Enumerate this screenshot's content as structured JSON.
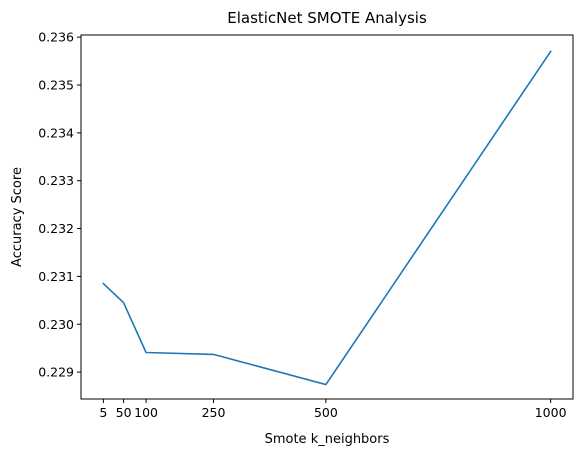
{
  "chart_data": {
    "type": "line",
    "title": "ElasticNet SMOTE Analysis",
    "xlabel": "Smote k_neighbors",
    "ylabel": "Accuracy Score",
    "x": [
      5,
      50,
      100,
      250,
      500,
      1000
    ],
    "series": [
      {
        "values": [
          0.23085,
          0.23045,
          0.22941,
          0.22937,
          0.22874,
          0.2357
        ],
        "color": "#1f77b4"
      }
    ],
    "xticks": [
      5,
      50,
      100,
      250,
      500,
      1000
    ],
    "xtick_labels": [
      "5",
      "50",
      "100",
      "250",
      "500",
      "1000"
    ],
    "yticks": [
      0.229,
      0.23,
      0.231,
      0.232,
      0.233,
      0.234,
      0.235,
      0.236
    ],
    "ytick_labels": [
      "0.229",
      "0.230",
      "0.231",
      "0.232",
      "0.233",
      "0.234",
      "0.235",
      "0.236"
    ],
    "xlim": [
      -44.75,
      1049.75
    ],
    "ylim": [
      0.228438,
      0.236045
    ],
    "grid": false,
    "legend": "none"
  }
}
